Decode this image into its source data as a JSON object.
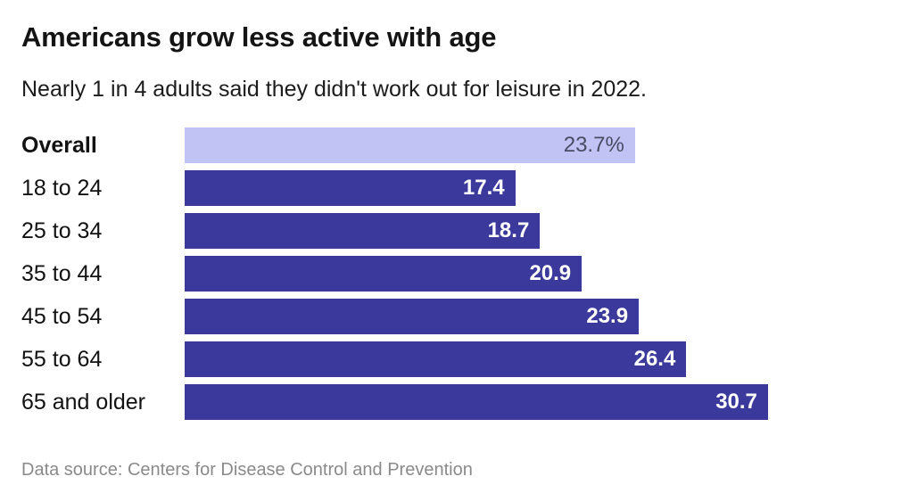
{
  "header": {
    "title": "Americans grow less active with age",
    "subtitle": "Nearly 1 in 4 adults said they didn't work out for leisure in 2022."
  },
  "footer": {
    "source": "Data source: Centers for Disease Control and Prevention"
  },
  "chart_data": {
    "type": "bar",
    "orientation": "horizontal",
    "title": "Americans grow less active with age",
    "subtitle": "Nearly 1 in 4 adults said they didn't work out for leisure in 2022.",
    "categories": [
      "Overall",
      "18 to 24",
      "25 to 34",
      "35 to 44",
      "45 to 54",
      "55 to 64",
      "65 and older"
    ],
    "values": [
      23.7,
      17.4,
      18.7,
      20.9,
      23.9,
      26.4,
      30.7
    ],
    "value_labels": [
      "23.7%",
      "17.4",
      "18.7",
      "20.9",
      "23.9",
      "26.4",
      "30.7"
    ],
    "unit": "percent of adults",
    "highlight_index": 0,
    "xlim": [
      0,
      38
    ],
    "grid": false,
    "legend": "none",
    "colors": {
      "bar": "#3b3a9c",
      "highlight_bar": "#c1c3f5",
      "bar_value_text": "#ffffff",
      "highlight_value_text": "#4a4c64",
      "title_text": "#141414",
      "source_text": "#8a8a8a"
    }
  }
}
